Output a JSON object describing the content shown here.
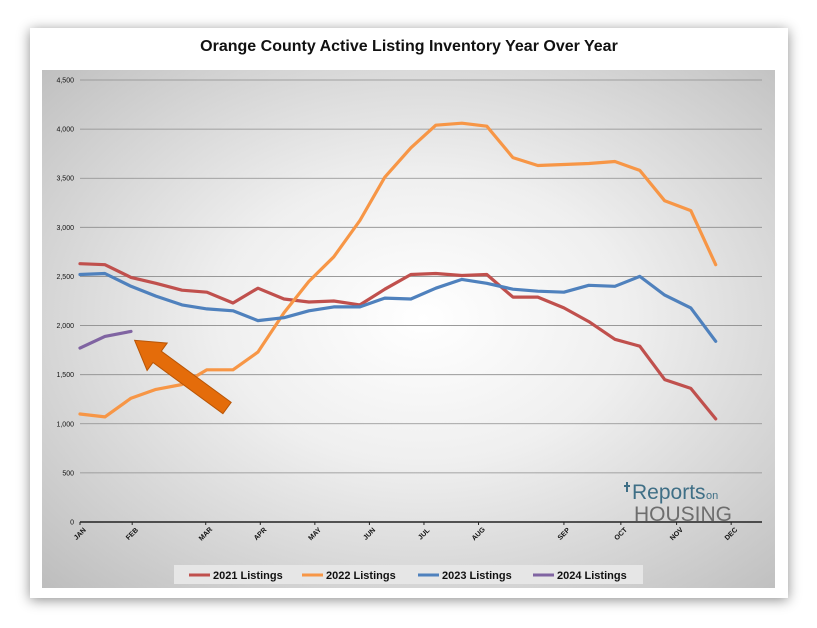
{
  "chart_data": {
    "type": "line",
    "title": "Orange County Active Listing Inventory Year Over Year",
    "xlabel": "",
    "ylabel": "",
    "ylim": [
      0,
      4500
    ],
    "yticks": [
      0,
      500,
      1000,
      1500,
      2000,
      2500,
      3000,
      3500,
      4000,
      4500
    ],
    "ytick_labels": [
      "0",
      "500",
      "1,000",
      "1,500",
      "2,000",
      "2,500",
      "3,000",
      "3,500",
      "4,000",
      "4,500"
    ],
    "x_ticks": [
      {
        "label": "JAN",
        "week": 0
      },
      {
        "label": "FEB",
        "week": 4.4
      },
      {
        "label": "MAR",
        "week": 10.6
      },
      {
        "label": "APR",
        "week": 15.2
      },
      {
        "label": "MAY",
        "week": 19.8
      },
      {
        "label": "JUN",
        "week": 24.4
      },
      {
        "label": "JUL",
        "week": 29.0
      },
      {
        "label": "AUG",
        "week": 33.6
      },
      {
        "label": "SEP",
        "week": 40.8
      },
      {
        "label": "OCT",
        "week": 45.6
      },
      {
        "label": "NOV",
        "week": 50.3
      },
      {
        "label": "DEC",
        "week": 54.9
      }
    ],
    "xlim": [
      0,
      57.5
    ],
    "grid": true,
    "legend_position": "bottom",
    "series": [
      {
        "name": "2021 Listings",
        "color": "#c0504d",
        "points": [
          [
            0,
            2630
          ],
          [
            2.1,
            2620
          ],
          [
            4.3,
            2490
          ],
          [
            6.4,
            2430
          ],
          [
            8.6,
            2360
          ],
          [
            10.7,
            2340
          ],
          [
            12.9,
            2230
          ],
          [
            15.0,
            2380
          ],
          [
            17.2,
            2270
          ],
          [
            19.3,
            2240
          ],
          [
            21.4,
            2250
          ],
          [
            23.6,
            2210
          ],
          [
            25.7,
            2370
          ],
          [
            27.9,
            2520
          ],
          [
            30.0,
            2530
          ],
          [
            32.2,
            2510
          ],
          [
            34.3,
            2520
          ],
          [
            36.5,
            2290
          ],
          [
            38.6,
            2290
          ],
          [
            40.8,
            2180
          ],
          [
            42.9,
            2040
          ],
          [
            45.1,
            1860
          ],
          [
            47.2,
            1790
          ],
          [
            49.3,
            1450
          ],
          [
            51.5,
            1360
          ],
          [
            53.6,
            1050
          ]
        ]
      },
      {
        "name": "2022 Listings",
        "color": "#f79646",
        "points": [
          [
            0,
            1100
          ],
          [
            2.1,
            1070
          ],
          [
            4.3,
            1260
          ],
          [
            6.4,
            1350
          ],
          [
            8.6,
            1400
          ],
          [
            10.7,
            1550
          ],
          [
            12.9,
            1550
          ],
          [
            15.0,
            1730
          ],
          [
            17.2,
            2130
          ],
          [
            19.3,
            2450
          ],
          [
            21.4,
            2700
          ],
          [
            23.6,
            3070
          ],
          [
            25.7,
            3510
          ],
          [
            27.9,
            3810
          ],
          [
            30.0,
            4040
          ],
          [
            32.2,
            4060
          ],
          [
            34.3,
            4030
          ],
          [
            36.5,
            3710
          ],
          [
            38.6,
            3630
          ],
          [
            40.8,
            3640
          ],
          [
            42.9,
            3650
          ],
          [
            45.1,
            3670
          ],
          [
            47.2,
            3580
          ],
          [
            49.3,
            3270
          ],
          [
            51.5,
            3170
          ],
          [
            53.6,
            2620
          ]
        ]
      },
      {
        "name": "2023 Listings",
        "color": "#4f81bd",
        "points": [
          [
            0,
            2520
          ],
          [
            2.1,
            2530
          ],
          [
            4.3,
            2400
          ],
          [
            6.4,
            2300
          ],
          [
            8.6,
            2210
          ],
          [
            10.7,
            2170
          ],
          [
            12.9,
            2150
          ],
          [
            15.0,
            2050
          ],
          [
            17.2,
            2080
          ],
          [
            19.3,
            2150
          ],
          [
            21.4,
            2190
          ],
          [
            23.6,
            2190
          ],
          [
            25.7,
            2280
          ],
          [
            27.9,
            2270
          ],
          [
            30.0,
            2380
          ],
          [
            32.2,
            2470
          ],
          [
            34.3,
            2430
          ],
          [
            36.5,
            2370
          ],
          [
            38.6,
            2350
          ],
          [
            40.8,
            2340
          ],
          [
            42.9,
            2410
          ],
          [
            45.1,
            2400
          ],
          [
            47.2,
            2500
          ],
          [
            49.3,
            2310
          ],
          [
            51.5,
            2180
          ],
          [
            53.6,
            1840
          ]
        ]
      },
      {
        "name": "2024 Listings",
        "color": "#8064a2",
        "points": [
          [
            0,
            1770
          ],
          [
            2.1,
            1890
          ],
          [
            4.3,
            1940
          ]
        ]
      }
    ],
    "annotation": {
      "type": "arrow",
      "color": "#e46c0a",
      "from": [
        12.4,
        1160
      ],
      "to": [
        4.6,
        1850
      ]
    }
  },
  "logo": {
    "part1": "Reports",
    "part2": "on",
    "part3": "HOUSING"
  }
}
